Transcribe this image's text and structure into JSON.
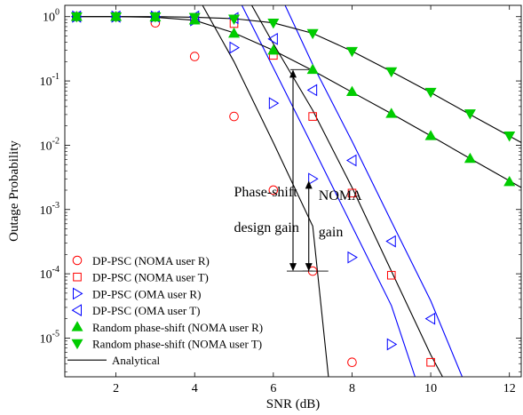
{
  "chart_data": {
    "type": "scatter",
    "xlabel": "SNR (dB)",
    "ylabel": "Outage Probability",
    "x_scale": "linear",
    "y_scale": "log",
    "xlim": [
      0.7,
      12.3
    ],
    "ylim": [
      2.5e-06,
      1.5
    ],
    "x_ticks": [
      2,
      4,
      6,
      8,
      10,
      12
    ],
    "x_tick_labels": [
      "2",
      "4",
      "6",
      "8",
      "10",
      "12"
    ],
    "y_ticks": [
      1e-05,
      0.0001,
      0.001,
      0.01,
      0.1,
      1
    ],
    "y_tick_labels": [
      {
        "base": "10",
        "exp": "-5"
      },
      {
        "base": "10",
        "exp": "-4"
      },
      {
        "base": "10",
        "exp": "-3"
      },
      {
        "base": "10",
        "exp": "-2"
      },
      {
        "base": "10",
        "exp": "-1"
      },
      {
        "base": "10",
        "exp": "0"
      }
    ],
    "legend_position": "bottom-left",
    "series": [
      {
        "name": "DP-PSC (NOMA user R)",
        "marker": "circle",
        "color": "#ff0000",
        "x": [
          1,
          2,
          3,
          4,
          5,
          6,
          7,
          8
        ],
        "y": [
          1,
          1,
          0.8,
          0.24,
          0.028,
          0.002,
          0.00011,
          4.2e-06
        ]
      },
      {
        "name": "DP-PSC (NOMA user T)",
        "marker": "square",
        "color": "#ff0000",
        "x": [
          1,
          2,
          3,
          4,
          5,
          6,
          7,
          8,
          9,
          10
        ],
        "y": [
          1,
          1,
          1,
          0.97,
          0.78,
          0.25,
          0.028,
          0.0018,
          9.5e-05,
          4.2e-06
        ]
      },
      {
        "name": "DP-PSC (OMA user R)",
        "marker": "triangle-right",
        "color": "#0000ff",
        "x": [
          1,
          2,
          3,
          4,
          5,
          6,
          7,
          8,
          9
        ],
        "y": [
          1,
          1,
          1,
          0.88,
          0.33,
          0.045,
          0.003,
          0.00018,
          8e-06
        ]
      },
      {
        "name": "DP-PSC (OMA user T)",
        "marker": "triangle-left",
        "color": "#0000ff",
        "x": [
          1,
          2,
          3,
          4,
          5,
          6,
          7,
          8,
          9,
          10
        ],
        "y": [
          1,
          1,
          1,
          1,
          0.95,
          0.45,
          0.072,
          0.0058,
          0.00032,
          2e-05
        ]
      },
      {
        "name": "Random phase-shift (NOMA user R)",
        "marker": "triangle-up-filled",
        "color": "#00cc00",
        "x": [
          1,
          2,
          3,
          4,
          5,
          6,
          7,
          8,
          9,
          10,
          11,
          12
        ],
        "y": [
          1,
          1,
          0.98,
          0.88,
          0.55,
          0.3,
          0.15,
          0.068,
          0.031,
          0.014,
          0.0062,
          0.0027
        ]
      },
      {
        "name": "Random phase-shift (NOMA user T)",
        "marker": "triangle-down-filled",
        "color": "#00cc00",
        "x": [
          1,
          2,
          3,
          4,
          5,
          6,
          7,
          8,
          9,
          10,
          11,
          12
        ],
        "y": [
          1,
          1,
          1,
          0.98,
          0.92,
          0.8,
          0.55,
          0.29,
          0.14,
          0.067,
          0.031,
          0.014
        ]
      },
      {
        "name": "Analytical",
        "marker": "line",
        "color": "#000000"
      }
    ],
    "analytical_curves": [
      {
        "color": "#000000",
        "x": [
          4.2,
          5,
          6,
          7,
          7.4
        ],
        "y": [
          1.5,
          0.2,
          0.011,
          0.00055,
          2.5e-06
        ]
      },
      {
        "color": "#000000",
        "x": [
          5.45,
          6,
          7,
          8,
          9,
          10,
          10.3
        ],
        "y": [
          1.5,
          0.38,
          0.035,
          0.0022,
          0.00011,
          5.5e-06,
          2.5e-06
        ]
      },
      {
        "color": "#0000ff",
        "x": [
          5.2,
          6,
          7,
          8,
          9,
          9.6
        ],
        "y": [
          1.5,
          0.16,
          0.0095,
          0.00055,
          3.2e-05,
          2.5e-06
        ]
      },
      {
        "color": "#0000ff",
        "x": [
          6.3,
          7,
          8,
          9,
          10,
          10.8
        ],
        "y": [
          1.5,
          0.18,
          0.0115,
          0.00065,
          3.8e-05,
          2.5e-06
        ]
      },
      {
        "color": "#000000",
        "x": [
          1,
          2,
          3,
          4,
          5,
          6,
          7,
          8,
          9,
          10,
          11,
          12.3
        ],
        "y": [
          1,
          1,
          0.98,
          0.88,
          0.56,
          0.3,
          0.145,
          0.067,
          0.031,
          0.014,
          0.0062,
          0.0022
        ]
      },
      {
        "color": "#000000",
        "x": [
          1,
          2,
          3,
          4,
          5,
          6,
          7,
          8,
          9,
          10,
          11,
          12.3
        ],
        "y": [
          1,
          1,
          1,
          0.98,
          0.93,
          0.8,
          0.55,
          0.29,
          0.14,
          0.066,
          0.03,
          0.011
        ]
      }
    ],
    "annotations": [
      {
        "id": "phase-shift",
        "lines": [
          "Phase-shift",
          "design gain"
        ],
        "arrow_x": 6.5,
        "arrow_y": [
          0.00011,
          0.15
        ],
        "text_x": 5.0,
        "text_y": [
          0.0016,
          0.00045
        ]
      },
      {
        "id": "noma",
        "lines": [
          "NOMA",
          "gain"
        ],
        "arrow_x": 6.9,
        "arrow_y": [
          0.00011,
          0.0028
        ],
        "text_x": 7.15,
        "text_y": [
          0.0014,
          0.00038
        ]
      }
    ]
  }
}
